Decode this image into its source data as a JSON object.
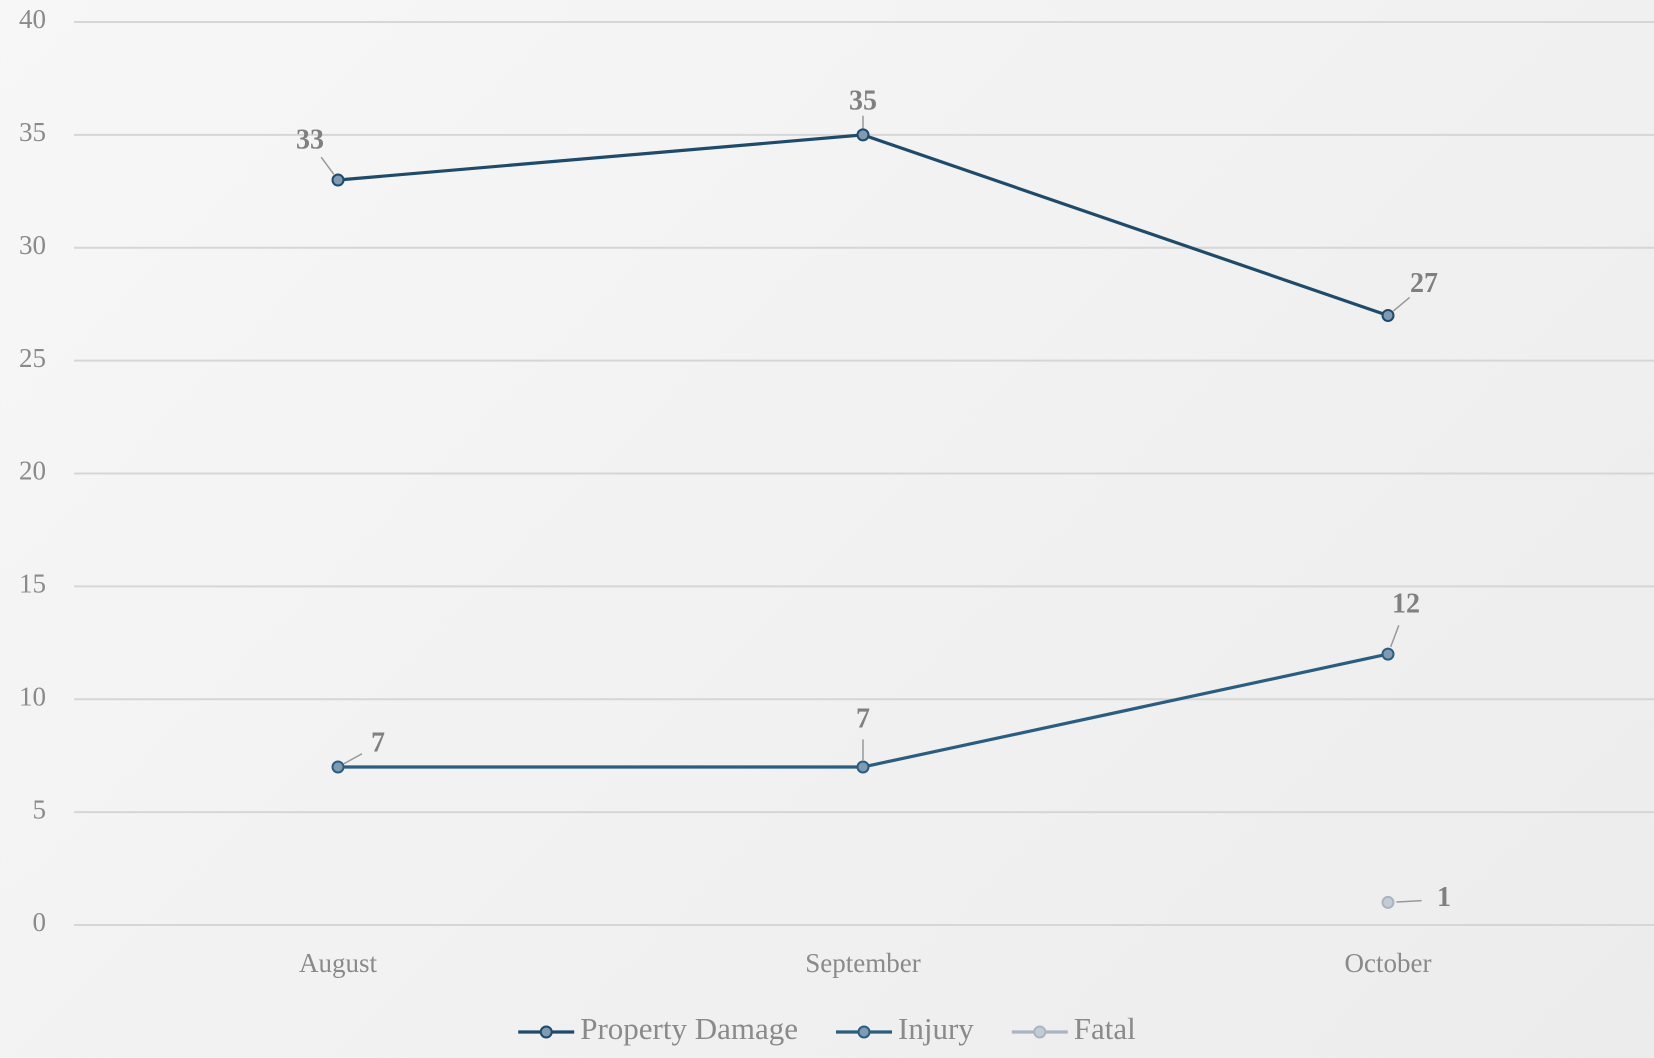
{
  "chart_data": {
    "type": "line",
    "categories": [
      "August",
      "September",
      "October"
    ],
    "series": [
      {
        "name": "Property Damage",
        "color": "#1f4a69",
        "values": [
          33,
          35,
          27
        ]
      },
      {
        "name": "Injury",
        "color": "#2b5d80",
        "values": [
          7,
          7,
          12
        ]
      },
      {
        "name": "Fatal",
        "color": "#a9b5c2",
        "values": [
          null,
          null,
          1
        ]
      }
    ],
    "ylim": [
      0,
      40
    ],
    "yticks": [
      0,
      5,
      10,
      15,
      20,
      25,
      30,
      35,
      40
    ],
    "grid": true,
    "legend": "bottom"
  }
}
